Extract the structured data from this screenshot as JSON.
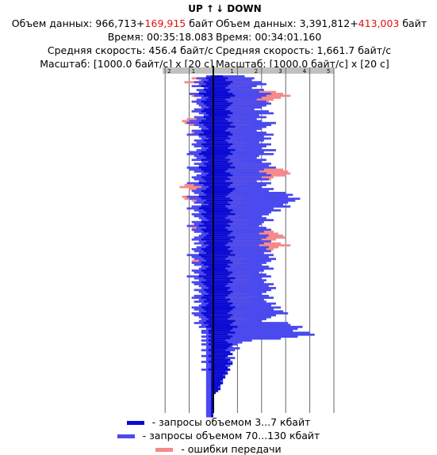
{
  "header": {
    "up_label": "UP ↑",
    "down_label": "↓ DOWN"
  },
  "stats": {
    "up": {
      "volume_prefix": "Объем данных: 966,713+",
      "volume_error": "169,915",
      "volume_unit": " байт",
      "time": "Время: 00:35:18.083",
      "avg_speed": "Средняя скорость: 456.4 байт/с",
      "scale": "Масштаб: [1000.0 байт/с] x [20 с]"
    },
    "down": {
      "volume_prefix": "Объем данных: 3,391,812+",
      "volume_error": "413,003",
      "volume_unit": " байт",
      "time": "Время: 00:34:01.160",
      "avg_speed": "Средняя скорость: 1,661.7 байт/с",
      "scale": "Масштаб: [1000.0 байт/с] x [20 с]"
    }
  },
  "legend": [
    {
      "label": " - запросы объемом 3...7 кбайт",
      "color": "#0a0ad2"
    },
    {
      "label": " - запросы объемом 70...130 кбайт",
      "color": "#4a4aee"
    },
    {
      "label": " - ошибки передачи",
      "color": "#f48a8a"
    }
  ],
  "chart_data": {
    "type": "bar",
    "orientation": "horizontal-back-to-back",
    "unit": "1000 байт/с",
    "interval_s": 20,
    "up_axis": {
      "ticks": [
        "2",
        "1"
      ],
      "max": 2.1
    },
    "down_axis": {
      "ticks": [
        "1",
        "2",
        "3",
        "4",
        "5"
      ],
      "max": 5.0
    },
    "colors": {
      "small": "#0a0ad2",
      "large": "#4a4aee",
      "error": "#f48a8a"
    },
    "up": {
      "small": [
        0.1,
        0.3,
        0.2,
        0.4,
        0.3,
        0.5,
        0.2,
        0.4,
        0.3,
        0.6,
        0.4,
        0.2,
        0.3,
        0.5,
        0.4,
        0.3,
        0.2,
        0.4,
        0.5,
        0.3,
        0.2,
        0.4,
        0.3,
        0.5,
        0.6,
        0.4,
        0.3,
        0.2,
        0.5,
        0.4,
        0.6,
        0.3,
        0.2,
        0.4,
        0.3,
        0.5,
        0.4,
        0.2,
        0.3,
        0.5,
        0.6,
        0.4,
        0.3,
        0.5,
        0.2,
        0.4,
        0.3,
        0.6,
        0.5,
        0.4,
        0.2,
        0.3,
        0.5,
        0.4,
        0.3,
        0.6,
        0.4,
        0.2,
        0.3,
        0.5,
        0.4,
        0.3,
        0.6,
        0.5,
        0.3,
        0.4,
        0.2,
        0.5,
        0.6,
        0.4,
        0.3,
        0.5,
        0.4,
        0.3,
        0.2,
        0.5,
        0.4,
        0.6,
        0.3,
        0.5,
        0.4,
        0.2,
        0.3,
        0.4,
        0.5,
        0.3,
        0.4,
        0.2,
        0.3,
        0.5,
        0.4,
        0.3,
        0.6,
        0.5,
        0.4,
        0.3,
        0.5,
        0.4,
        0.2,
        0.3,
        0.5,
        0.4,
        0.3,
        0.6,
        0.4,
        0.3,
        0.5,
        0.4,
        0.3,
        0.2,
        0.4,
        0.3,
        0.2,
        0.4,
        0.5,
        0.3,
        0.4,
        0.2,
        0.3,
        0.5,
        0.4,
        0.3,
        0.5,
        0.4,
        0.3,
        0.2,
        0.3,
        0.4,
        0.2,
        0.3,
        0.1,
        0.2,
        0.2,
        0.1,
        0.2,
        0.1,
        0.2,
        0.1,
        0.2,
        0.1,
        0.1,
        0.2,
        0.1,
        0.1,
        0.2,
        0.1,
        0.1,
        0.2,
        0.1,
        0.1,
        0.1,
        0.2,
        0.1,
        0.1,
        0.1,
        0.1,
        0.1,
        0.1,
        0.1,
        0.1,
        0.1,
        0.1,
        0.1,
        0.1,
        0.1,
        0.1,
        0.1,
        0.1,
        0.1,
        0.1,
        0.1,
        0.1,
        0.1,
        0.1,
        0.1,
        0.1
      ],
      "large": [
        0.3,
        0.7,
        0.5,
        0.8,
        0.6,
        0.9,
        0.4,
        0.7,
        0.6,
        1.0,
        0.8,
        0.5,
        0.7,
        0.9,
        0.7,
        0.6,
        0.5,
        0.8,
        0.9,
        0.6,
        0.4,
        0.8,
        0.7,
        1.0,
        1.1,
        0.8,
        0.6,
        0.5,
        0.9,
        0.8,
        1.1,
        0.6,
        0.5,
        0.8,
        0.7,
        0.9,
        0.8,
        0.5,
        0.7,
        1.0,
        1.1,
        0.8,
        0.7,
        0.9,
        0.5,
        0.8,
        0.6,
        1.1,
        1.0,
        0.8,
        0.5,
        0.7,
        0.9,
        0.8,
        0.6,
        1.1,
        0.8,
        0.5,
        0.7,
        0.9,
        0.8,
        0.6,
        1.1,
        1.0,
        0.7,
        0.8,
        0.5,
        0.9,
        1.1,
        0.8,
        0.6,
        0.9,
        0.8,
        0.6,
        0.5,
        0.9,
        0.8,
        1.1,
        0.7,
        0.9,
        0.8,
        0.5,
        0.6,
        0.8,
        0.9,
        0.6,
        0.8,
        0.5,
        0.7,
        0.9,
        0.8,
        0.6,
        1.1,
        0.9,
        0.8,
        0.6,
        0.9,
        0.8,
        0.5,
        0.6,
        0.9,
        0.8,
        0.6,
        1.1,
        0.8,
        0.6,
        0.9,
        0.8,
        0.6,
        0.5,
        0.8,
        0.6,
        0.5,
        0.8,
        0.9,
        0.6,
        0.8,
        0.5,
        0.6,
        0.9,
        0.8,
        0.6,
        0.9,
        0.8,
        0.6,
        0.5,
        0.6,
        0.8,
        0.5,
        0.6,
        0.3,
        0.5,
        0.5,
        0.3,
        0.5,
        0.3,
        0.5,
        0.3,
        0.5,
        0.3,
        0.3,
        0.5,
        0.3,
        0.3,
        0.5,
        0.3,
        0.3,
        0.5,
        0.3,
        0.3,
        0.3,
        0.5,
        0.3,
        0.3,
        0.3,
        0.3,
        0.3,
        0.3,
        0.3,
        0.3,
        0.3,
        0.3,
        0.3,
        0.3,
        0.3,
        0.3,
        0.3,
        0.3,
        0.3,
        0.3,
        0.3,
        0.3,
        0.3,
        0.3,
        0.3,
        0.3
      ],
      "error": [
        0.3,
        0.9,
        0.6,
        1.2,
        0.3,
        0.5,
        0.2,
        0.3,
        0.2,
        1.0,
        0.9,
        0.3,
        0.2,
        0.4,
        0.2,
        0.2,
        0.3,
        0.5,
        0.9,
        0.4,
        0.2,
        0.3,
        1.1,
        1.3,
        1.2,
        1.0,
        0.3,
        0.2,
        0.4,
        0.9,
        0.5,
        0.3,
        0.2,
        0.4,
        0.3,
        0.5,
        0.3,
        0.2,
        0.2,
        0.4,
        0.5,
        0.3,
        0.2,
        0.3,
        0.2,
        0.4,
        0.3,
        0.4,
        0.3,
        0.3,
        0.2,
        0.3,
        0.5,
        0.4,
        0.3,
        0.5,
        1.2,
        1.4,
        1.0,
        0.5,
        0.4,
        0.3,
        1.3,
        1.2,
        0.9,
        0.4,
        0.2,
        0.4,
        0.5,
        0.3,
        0.2,
        0.3,
        0.4,
        0.3,
        0.2,
        0.4,
        0.3,
        0.5,
        0.9,
        0.4,
        0.3,
        0.2,
        0.3,
        0.4,
        0.5,
        0.3,
        0.4,
        0.2,
        0.3,
        0.4,
        0.3,
        0.3,
        0.5,
        0.4,
        0.8,
        0.9,
        0.4,
        0.3,
        0.2,
        0.3,
        0.4,
        0.3,
        0.3,
        0.5,
        0.4,
        0.3,
        0.4,
        0.3,
        0.2,
        0.2,
        0.3,
        0.2,
        0.2,
        0.3,
        0.4,
        0.2,
        0.3,
        0.2,
        0.2,
        0.3,
        0.3,
        0.2,
        0.3,
        0.3,
        0.2,
        0.2,
        0.2,
        0.3,
        0.2,
        0.2,
        0.1,
        0.1,
        0.1,
        0.1,
        0.1,
        0.1,
        0.1,
        0.1,
        0.1,
        0.1,
        0.1,
        0.1,
        0.1,
        0.1,
        0.1,
        0.1,
        0.1,
        0.1,
        0.1,
        0.1,
        0.1,
        0.1,
        0.1,
        0.1,
        0.1,
        0.1,
        0.1,
        0.1,
        0.1,
        0.1,
        0.1,
        0.1,
        0.1,
        0.1,
        0.1,
        0.1,
        0.1,
        0.1,
        0.1,
        0.1,
        0.1,
        0.1,
        0.1,
        0.1,
        0.1,
        0.1
      ]
    },
    "down": {
      "small": [
        0.4,
        0.6,
        0.5,
        0.8,
        0.7,
        0.6,
        0.5,
        0.7,
        0.6,
        0.8,
        0.9,
        0.7,
        0.5,
        0.6,
        0.8,
        0.7,
        0.6,
        0.5,
        0.7,
        0.8,
        0.6,
        0.7,
        0.5,
        0.6,
        0.8,
        0.7,
        0.9,
        0.6,
        0.5,
        0.7,
        0.8,
        0.6,
        0.7,
        0.5,
        0.6,
        0.8,
        0.7,
        0.6,
        0.9,
        0.7,
        0.8,
        0.6,
        0.5,
        0.7,
        0.6,
        0.8,
        0.7,
        0.9,
        0.6,
        0.5,
        0.7,
        0.8,
        0.6,
        0.7,
        0.5,
        0.8,
        0.7,
        0.6,
        0.9,
        0.8,
        0.7,
        0.6,
        0.5,
        0.7,
        0.8,
        0.6,
        0.7,
        0.5,
        0.6,
        0.8,
        0.7,
        0.9,
        0.6,
        0.5,
        0.7,
        0.8,
        0.6,
        0.7,
        0.5,
        0.6,
        0.8,
        0.7,
        0.6,
        0.9,
        0.7,
        0.8,
        0.6,
        0.5,
        0.7,
        0.6,
        0.8,
        0.7,
        0.9,
        0.6,
        0.5,
        0.7,
        0.8,
        0.6,
        0.7,
        0.5,
        0.6,
        0.8,
        0.7,
        0.6,
        0.9,
        0.7,
        0.8,
        0.6,
        0.5,
        0.7,
        0.6,
        0.8,
        0.7,
        0.6,
        0.5,
        0.7,
        0.6,
        0.8,
        0.7,
        0.9,
        0.8,
        0.7,
        0.6,
        0.8,
        0.7,
        0.6,
        0.9,
        0.8,
        0.7,
        1.0,
        0.8,
        0.7,
        0.9,
        0.6,
        0.8,
        0.7,
        0.5,
        0.6,
        0.8,
        0.7,
        0.6,
        0.5,
        0.7,
        0.8,
        0.6,
        0.5,
        0.7,
        0.6,
        0.8,
        0.5,
        0.6,
        0.7,
        0.5,
        0.6,
        0.4,
        0.5,
        0.4,
        0.3,
        0.4,
        0.3,
        0.2,
        0.3,
        0.2,
        0.1,
        0.0,
        0.0,
        0.0,
        0.0,
        0.0,
        0.0,
        0.0,
        0.0,
        0.0,
        0.0,
        0.0,
        0.0,
        0.0,
        0.0,
        0.0
      ],
      "large": [
        1.3,
        1.7,
        1.6,
        2.0,
        2.2,
        1.8,
        1.6,
        2.1,
        1.9,
        2.4,
        2.2,
        2.0,
        1.8,
        2.2,
        2.4,
        2.2,
        2.0,
        1.7,
        2.3,
        2.5,
        1.9,
        2.2,
        1.8,
        2.0,
        2.6,
        2.4,
        2.2,
        2.0,
        1.8,
        2.2,
        2.5,
        2.1,
        2.4,
        2.1,
        1.9,
        2.4,
        2.2,
        2.0,
        2.6,
        2.1,
        2.5,
        1.9,
        1.8,
        2.2,
        2.0,
        2.4,
        2.3,
        2.6,
        2.1,
        1.9,
        2.2,
        2.4,
        2.0,
        2.3,
        1.8,
        2.4,
        2.2,
        2.0,
        2.5,
        2.3,
        3.0,
        3.3,
        3.1,
        3.6,
        3.4,
        3.1,
        2.9,
        3.2,
        2.5,
        2.8,
        2.4,
        2.3,
        2.0,
        2.2,
        2.5,
        2.1,
        2.0,
        1.9,
        2.2,
        2.4,
        2.1,
        1.9,
        2.3,
        2.2,
        2.0,
        2.4,
        2.1,
        1.9,
        2.3,
        2.2,
        2.4,
        2.1,
        2.5,
        2.3,
        2.6,
        2.4,
        2.2,
        2.0,
        2.3,
        2.5,
        2.1,
        1.9,
        2.2,
        2.4,
        2.0,
        2.2,
        2.1,
        2.5,
        2.3,
        2.6,
        2.4,
        2.2,
        2.0,
        2.3,
        2.5,
        2.1,
        2.2,
        2.6,
        2.4,
        2.8,
        2.5,
        2.9,
        3.1,
        2.6,
        2.4,
        2.2,
        2.0,
        3.1,
        3.2,
        3.7,
        3.5,
        3.3,
        4.0,
        4.2,
        3.5,
        2.8,
        1.6,
        1.2,
        1.0,
        0.8,
        1.1,
        0.9,
        0.7,
        0.8,
        0.6,
        0.9,
        0.7,
        0.8,
        0.5,
        0.7,
        0.6,
        0.5,
        0.6,
        0.4,
        0.5,
        0.4,
        0.3,
        0.4,
        0.3,
        0.2,
        0.3,
        0.2,
        0.1,
        0.0,
        0.0,
        0.0,
        0.0,
        0.0,
        0.0,
        0.0,
        0.0,
        0.0,
        0.0,
        0.0,
        0.0,
        0.0,
        0.0,
        0.0
      ],
      "error": [
        1.0,
        1.4,
        1.2,
        1.6,
        1.8,
        1.5,
        1.2,
        2.1,
        2.6,
        2.9,
        3.2,
        2.8,
        2.5,
        2.3,
        2.0,
        1.5,
        1.2,
        1.6,
        1.8,
        1.5,
        1.3,
        1.6,
        1.4,
        1.2,
        1.5,
        1.6,
        1.4,
        1.2,
        1.0,
        1.4,
        1.5,
        1.3,
        1.2,
        1.0,
        1.3,
        1.5,
        1.4,
        1.2,
        1.6,
        1.3,
        1.5,
        1.2,
        1.0,
        1.4,
        1.2,
        1.6,
        2.3,
        2.6,
        2.9,
        3.1,
        3.2,
        3.0,
        2.5,
        2.4,
        1.8,
        1.5,
        1.3,
        1.1,
        1.5,
        1.4,
        1.2,
        1.0,
        1.3,
        1.5,
        1.2,
        1.1,
        1.4,
        1.0,
        1.2,
        1.5,
        1.3,
        1.6,
        1.2,
        1.0,
        1.4,
        1.5,
        1.3,
        1.4,
        1.8,
        2.1,
        2.5,
        2.7,
        2.9,
        3.0,
        2.6,
        2.3,
        2.8,
        3.2,
        2.7,
        2.5,
        2.0,
        1.6,
        1.4,
        1.2,
        1.5,
        1.3,
        1.1,
        1.4,
        1.6,
        1.3,
        1.2,
        1.5,
        1.4,
        1.6,
        1.3,
        1.5,
        1.4,
        1.2,
        1.0,
        1.3,
        1.5,
        1.2,
        1.4,
        1.6,
        1.8,
        1.5,
        1.3,
        1.6,
        1.4,
        1.2,
        1.5,
        1.3,
        1.6,
        1.2,
        1.0,
        1.4,
        1.5,
        1.3,
        1.2,
        1.0,
        0.8,
        0.9,
        0.8,
        0.7,
        0.6,
        0.8,
        0.7,
        0.6,
        0.5,
        0.6,
        0.7,
        0.6,
        0.5,
        0.6,
        0.5,
        0.4,
        0.5,
        0.4,
        0.5,
        0.4,
        0.3,
        0.4,
        0.3,
        0.2,
        0.3,
        0.2,
        0.1,
        0.1,
        0.0,
        0.0,
        0.0,
        0.0,
        0.0,
        0.0,
        0.0,
        0.0,
        0.0,
        0.0,
        0.0,
        0.0,
        0.0,
        0.0,
        0.0,
        0.0,
        0.0,
        0.0,
        0.0
      ]
    }
  }
}
